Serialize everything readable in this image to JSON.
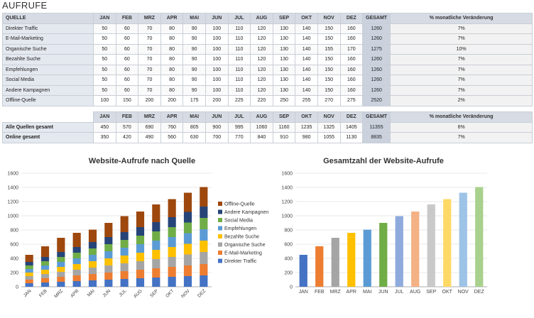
{
  "sheet": {
    "title": "AUFRUFE"
  },
  "table1": {
    "header": {
      "source": "QUELLE",
      "months": [
        "JAN",
        "FEB",
        "MRZ",
        "APR",
        "MAI",
        "JUN",
        "JUL",
        "AUG",
        "SEP",
        "OKT",
        "NOV",
        "DEZ"
      ],
      "total": "GESAMT",
      "change": "% monatliche Veränderung"
    },
    "rows": [
      {
        "name": "Direkter Traffic",
        "values": [
          "50",
          "60",
          "70",
          "80",
          "90",
          "100",
          "110",
          "120",
          "130",
          "140",
          "150",
          "160"
        ],
        "total": "1260",
        "change": "7%"
      },
      {
        "name": "E-Mail-Marketing",
        "values": [
          "50",
          "60",
          "70",
          "80",
          "90",
          "100",
          "110",
          "120",
          "130",
          "140",
          "150",
          "160"
        ],
        "total": "1260",
        "change": "7%"
      },
      {
        "name": "Organische Suche",
        "values": [
          "50",
          "60",
          "70",
          "80",
          "90",
          "100",
          "110",
          "120",
          "130",
          "140",
          "155",
          "170"
        ],
        "total": "1275",
        "change": "10%"
      },
      {
        "name": "Bezahlte Suche",
        "values": [
          "50",
          "60",
          "70",
          "80",
          "90",
          "100",
          "110",
          "120",
          "130",
          "140",
          "150",
          "160"
        ],
        "total": "1260",
        "change": "7%"
      },
      {
        "name": "Empfehlungen",
        "values": [
          "50",
          "60",
          "70",
          "80",
          "90",
          "100",
          "110",
          "120",
          "130",
          "140",
          "150",
          "160"
        ],
        "total": "1260",
        "change": "7%"
      },
      {
        "name": "Social Media",
        "values": [
          "50",
          "60",
          "70",
          "80",
          "90",
          "100",
          "110",
          "120",
          "130",
          "140",
          "150",
          "160"
        ],
        "total": "1260",
        "change": "7%"
      },
      {
        "name": "Andere Kampagnen",
        "values": [
          "50",
          "60",
          "70",
          "80",
          "90",
          "100",
          "110",
          "120",
          "130",
          "140",
          "150",
          "160"
        ],
        "total": "1260",
        "change": "7%"
      },
      {
        "name": "Offline-Quelle",
        "values": [
          "100",
          "150",
          "200",
          "200",
          "175",
          "200",
          "225",
          "220",
          "250",
          "255",
          "270",
          "275"
        ],
        "total": "2520",
        "change": "2%"
      }
    ]
  },
  "table2": {
    "header": {
      "months": [
        "JAN",
        "FEB",
        "MRZ",
        "APR",
        "MAI",
        "JUN",
        "JUL",
        "AUG",
        "SEP",
        "OKT",
        "NOV",
        "DEZ"
      ],
      "total": "GESAMT",
      "change": "% monatliche Veränderung"
    },
    "rows": [
      {
        "name": "Alle Quellen gesamt",
        "values": [
          "450",
          "570",
          "690",
          "760",
          "805",
          "900",
          "995",
          "1060",
          "1160",
          "1235",
          "1325",
          "1405"
        ],
        "total": "11355",
        "change": "6%"
      },
      {
        "name": "Online gesamt",
        "values": [
          "350",
          "420",
          "490",
          "560",
          "630",
          "700",
          "770",
          "840",
          "910",
          "980",
          "1055",
          "1130"
        ],
        "total": "8835",
        "change": "7%"
      }
    ]
  },
  "chart_data": [
    {
      "type": "bar",
      "stacked": true,
      "title": "Website-Aufrufe nach Quelle",
      "categories": [
        "JAN",
        "FEB",
        "MRZ",
        "APR",
        "MAI",
        "JUN",
        "JUL",
        "AUG",
        "SEP",
        "OKT",
        "NOV",
        "DEZ"
      ],
      "ylim": [
        0,
        1600
      ],
      "yticks": [
        "0",
        "200",
        "400",
        "600",
        "800",
        "1000",
        "1200",
        "1400",
        "1600"
      ],
      "legend_position": "right",
      "series": [
        {
          "name": "Direkter Traffic",
          "color": "#4472c4",
          "values": [
            50,
            60,
            70,
            80,
            90,
            100,
            110,
            120,
            130,
            140,
            150,
            160
          ]
        },
        {
          "name": "E-Mail-Marketing",
          "color": "#ed7d31",
          "values": [
            50,
            60,
            70,
            80,
            90,
            100,
            110,
            120,
            130,
            140,
            150,
            160
          ]
        },
        {
          "name": "Organische Suche",
          "color": "#a5a5a5",
          "values": [
            50,
            60,
            70,
            80,
            90,
            100,
            110,
            120,
            130,
            140,
            155,
            170
          ]
        },
        {
          "name": "Bezahlte Suche",
          "color": "#ffc000",
          "values": [
            50,
            60,
            70,
            80,
            90,
            100,
            110,
            120,
            130,
            140,
            150,
            160
          ]
        },
        {
          "name": "Empfehlungen",
          "color": "#5b9bd5",
          "values": [
            50,
            60,
            70,
            80,
            90,
            100,
            110,
            120,
            130,
            140,
            150,
            160
          ]
        },
        {
          "name": "Social Media",
          "color": "#70ad47",
          "values": [
            50,
            60,
            70,
            80,
            90,
            100,
            110,
            120,
            130,
            140,
            150,
            160
          ]
        },
        {
          "name": "Andere Kampagnen",
          "color": "#264478",
          "values": [
            50,
            60,
            70,
            80,
            90,
            100,
            110,
            120,
            130,
            140,
            150,
            160
          ]
        },
        {
          "name": "Offline-Quelle",
          "color": "#9e480e",
          "values": [
            100,
            150,
            200,
            200,
            175,
            200,
            225,
            220,
            250,
            255,
            270,
            275
          ]
        }
      ]
    },
    {
      "type": "bar",
      "title": "Gesamtzahl der Website-Aufrufe",
      "categories": [
        "JAN",
        "FEB",
        "MRZ",
        "APR",
        "MAI",
        "JUN",
        "JUL",
        "AUG",
        "SEP",
        "OKT",
        "NOV",
        "DEZ"
      ],
      "values": [
        450,
        570,
        690,
        760,
        805,
        900,
        995,
        1060,
        1160,
        1235,
        1325,
        1405
      ],
      "colors": [
        "#4472c4",
        "#ed7d31",
        "#a5a5a5",
        "#ffc000",
        "#5b9bd5",
        "#70ad47",
        "#8faadc",
        "#f4b183",
        "#c9c9c9",
        "#ffd966",
        "#9dc3e6",
        "#a9d18e"
      ],
      "ylim": [
        0,
        1600
      ],
      "yticks": [
        "0",
        "200",
        "400",
        "600",
        "800",
        "1000",
        "1200",
        "1400",
        "1600"
      ]
    }
  ]
}
